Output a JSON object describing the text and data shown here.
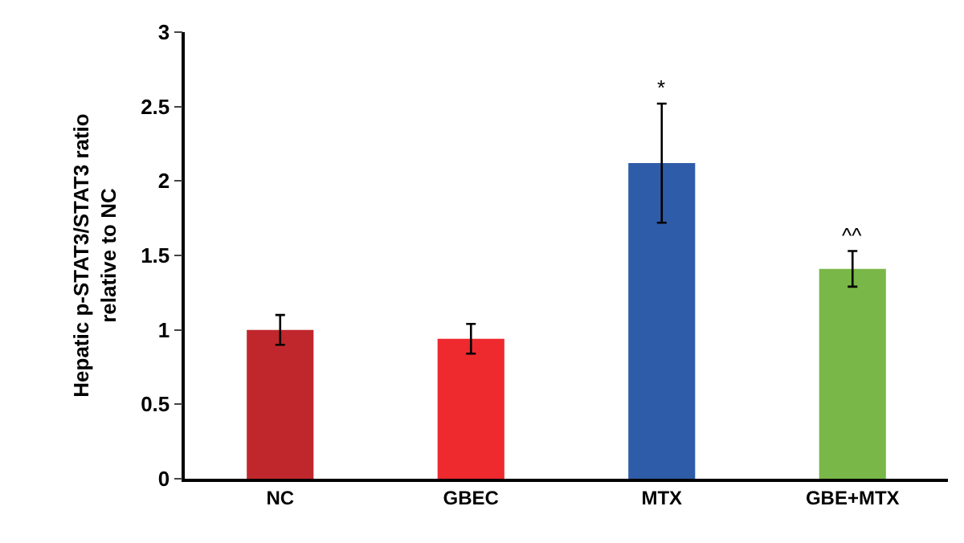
{
  "chart_data": {
    "type": "bar",
    "ylabel": "Hepatic p-STAT3/STAT3 ratio\nrelative to NC",
    "categories": [
      "NC",
      "GBEC",
      "MTX",
      "GBE+MTX"
    ],
    "values": [
      1.0,
      0.94,
      2.12,
      1.41
    ],
    "errors": [
      0.1,
      0.1,
      0.4,
      0.12
    ],
    "colors": [
      "#c0272d",
      "#ee2a2f",
      "#2f5ca8",
      "#79b748"
    ],
    "ylim": [
      0,
      3
    ],
    "yticks": [
      0,
      0.5,
      1,
      1.5,
      2,
      2.5,
      3
    ],
    "grid": false,
    "annotations": [
      {
        "text": "*",
        "x": "MTX",
        "y": 2.52
      },
      {
        "text": "^^",
        "x": "GBE+MTX",
        "y": 1.53
      }
    ]
  }
}
